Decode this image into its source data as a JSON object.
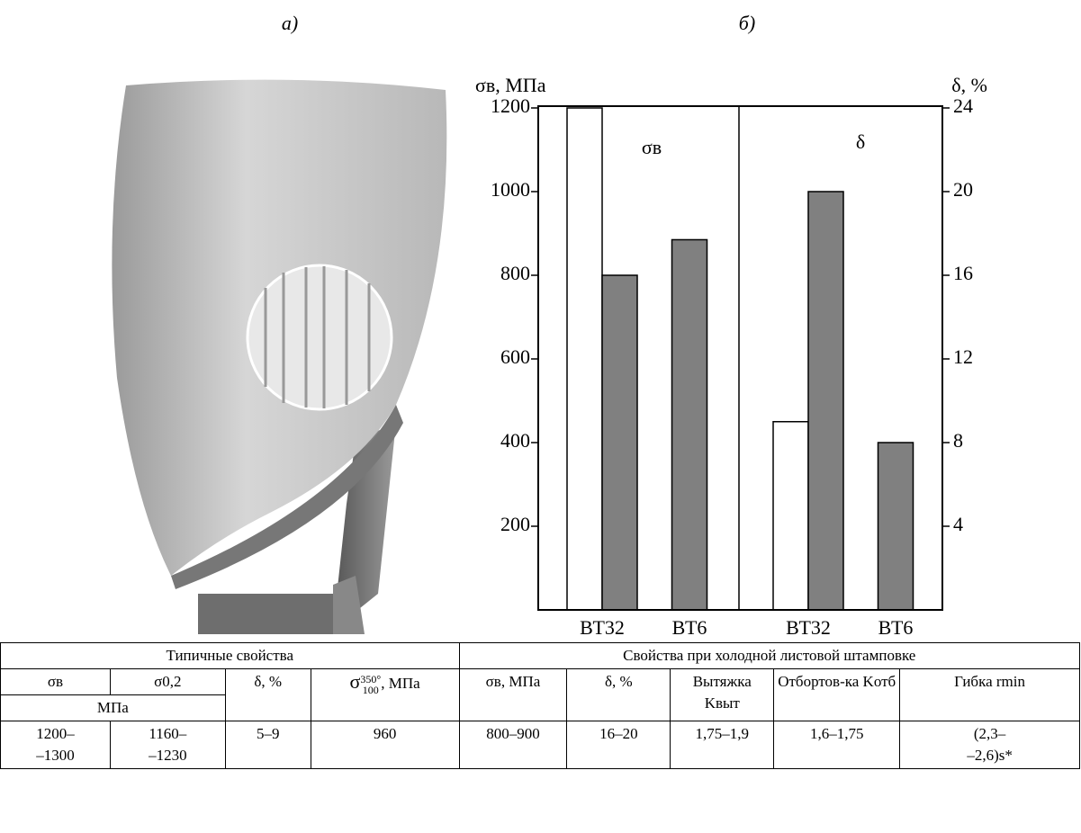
{
  "panel_labels": [
    "а)",
    "б)"
  ],
  "chart_data": {
    "type": "bar",
    "y_label": "σв, МПа",
    "y2_label": "δ, %",
    "annotations": [
      "σв",
      "δ"
    ],
    "categories": [
      "ВТ32",
      "ВТ6",
      "ВТ32",
      "ВТ6"
    ],
    "series": [
      {
        "color": "#ffffff",
        "values": [
          1200,
          null,
          null,
          null
        ]
      },
      {
        "color": "#808080",
        "values": [
          800,
          885,
          null,
          null
        ]
      },
      {
        "color": "#ffffff",
        "values": [
          null,
          null,
          9,
          null
        ],
        "axis": "y2"
      },
      {
        "color": "#808080",
        "values": [
          null,
          null,
          20,
          8
        ],
        "axis": "y2"
      }
    ],
    "ylim": [
      0,
      1200
    ],
    "yticks": [
      200,
      400,
      600,
      800,
      1000,
      1200
    ],
    "y2lim": [
      0,
      24
    ],
    "y2ticks": [
      4,
      8,
      12,
      16,
      20,
      24
    ]
  },
  "table": {
    "groups": [
      "Типичные свойства",
      "Свойства при холодной листовой штамповке"
    ],
    "columns": [
      "σв",
      "σ0,2",
      "δ, %",
      {
        "symbol": "σ",
        "sup": "350°",
        "sub": "100",
        "unit": ", МПа"
      },
      "σв, МПа",
      "δ, %",
      "Вытяжка Kвыт",
      "Отбортов-ка Kотб",
      "Гибка rmin"
    ],
    "unit": "МПа",
    "rows": [
      [
        "1200–\n–1300",
        "1160–\n–1230",
        "5–9",
        "960",
        "800–900",
        "16–20",
        "1,75–1,9",
        "1,6–1,75",
        "(2,3–\n–2,6)s*"
      ]
    ]
  }
}
